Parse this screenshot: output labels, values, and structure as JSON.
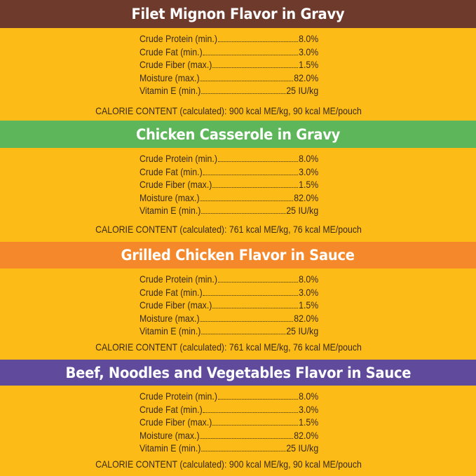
{
  "colors": {
    "background": "#fcbb16",
    "brown": "#6e3a2c",
    "green": "#5db65a",
    "orange": "#f4882a",
    "purple": "#604a9b"
  },
  "sections": [
    {
      "title": "Filet Mignon Flavor in Gravy",
      "color": "#6e3a2c",
      "rows": [
        {
          "label": "Crude Protein (min.)",
          "value": "8.0%"
        },
        {
          "label": "Crude Fat (min.)",
          "value": "3.0%"
        },
        {
          "label": "Crude Fiber (max.)",
          "value": "1.5%"
        },
        {
          "label": "Moisture (max.)",
          "value": "82.0%"
        },
        {
          "label": "Vitamin E (min.)",
          "value": "25 IU/kg"
        }
      ],
      "calorie": "CALORIE CONTENT (calculated): 900 kcal ME/kg, 90 kcal ME/pouch"
    },
    {
      "title": "Chicken Casserole in Gravy",
      "color": "#5db65a",
      "rows": [
        {
          "label": "Crude Protein (min.)",
          "value": "8.0%"
        },
        {
          "label": "Crude Fat (min.)",
          "value": "3.0%"
        },
        {
          "label": "Crude Fiber (max.)",
          "value": "1.5%"
        },
        {
          "label": "Moisture (max.)",
          "value": "82.0%"
        },
        {
          "label": "Vitamin E (min.)",
          "value": "25 IU/kg"
        }
      ],
      "calorie": "CALORIE CONTENT (calculated): 761 kcal ME/kg, 76 kcal ME/pouch"
    },
    {
      "title": "Grilled Chicken Flavor in Sauce",
      "color": "#f4882a",
      "rows": [
        {
          "label": "Crude Protein (min.)",
          "value": "8.0%"
        },
        {
          "label": "Crude Fat (min.)",
          "value": "3.0%"
        },
        {
          "label": "Crude Fiber (max.)",
          "value": "1.5%"
        },
        {
          "label": "Moisture (max.)",
          "value": "82.0%"
        },
        {
          "label": "Vitamin E (min.)",
          "value": "25 IU/kg"
        }
      ],
      "calorie": "CALORIE CONTENT (calculated): 761 kcal ME/kg, 76 kcal ME/pouch"
    },
    {
      "title": "Beef, Noodles and Vegetables Flavor in Sauce",
      "color": "#604a9b",
      "rows": [
        {
          "label": "Crude Protein (min.)",
          "value": "8.0%"
        },
        {
          "label": "Crude Fat (min.)",
          "value": "3.0%"
        },
        {
          "label": "Crude Fiber (max.)",
          "value": "1.5%"
        },
        {
          "label": "Moisture (max.)",
          "value": "82.0%"
        },
        {
          "label": "Vitamin E (min.)",
          "value": "25 IU/kg"
        }
      ],
      "calorie": "CALORIE CONTENT (calculated): 900 kcal ME/kg, 90 kcal ME/pouch"
    }
  ]
}
